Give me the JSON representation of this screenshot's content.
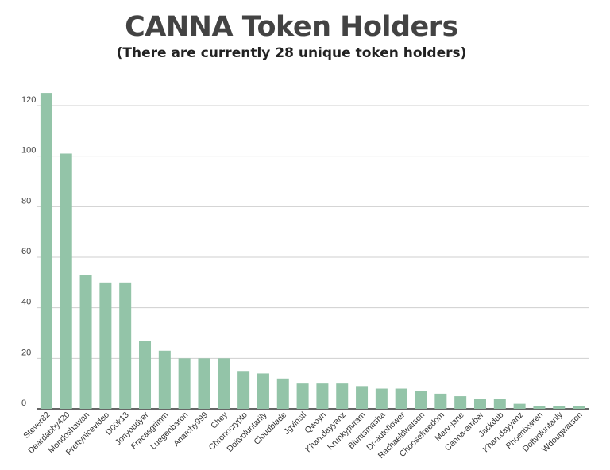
{
  "chart_data": {
    "type": "bar",
    "title": "CANNA Token Holders",
    "subtitle": "(There are currently 28 unique token holders)",
    "xlabel": "",
    "ylabel": "",
    "ylim": [
      0,
      120
    ],
    "yticks": [
      "0",
      "20",
      "40",
      "60",
      "80",
      "100",
      "120"
    ],
    "grid": true,
    "legend": "none",
    "bar_color": "#93c4a8",
    "categories": [
      "Stever82",
      "Deardabby420",
      "Mondoshawan",
      "Prettynicevideo",
      "D00k13",
      "Jonyoudyer",
      "Fracasgrimm",
      "Luegenbaron",
      "Anarchy999",
      "Chey",
      "Chronocrypto",
      "Doitvoluntarily",
      "Cloudblade",
      "Jgvinstl",
      "Qwoyn",
      "Khan.dayyanz",
      "Krunkypuram",
      "Bluntsmasha",
      "Dr-autoflower",
      "Rachaeldwatson",
      "Choosefreedom",
      "Mary-jane",
      "Canna-amber",
      "Jackdub",
      "Khan.dayyanz",
      "Phoenixwren",
      "Doitvoluntarily",
      "Wdougwatson"
    ],
    "values": [
      125,
      101,
      53,
      50,
      50,
      27,
      23,
      20,
      20,
      20,
      15,
      14,
      12,
      10,
      10,
      10,
      9,
      8,
      8,
      7,
      6,
      5,
      4,
      4,
      2,
      1,
      1,
      1
    ]
  }
}
